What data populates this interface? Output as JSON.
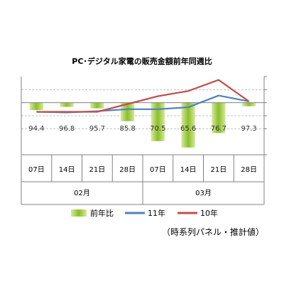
{
  "chart_data": {
    "type": "bar",
    "title": "PC･デジタル家電の販売金額前年同週比",
    "categories": [
      "07日",
      "14日",
      "21日",
      "28日",
      "07日",
      "14日",
      "21日",
      "28日"
    ],
    "month_groups": [
      {
        "label": "02月",
        "from": 0,
        "to": 3
      },
      {
        "label": "03月",
        "from": 4,
        "to": 7
      }
    ],
    "ylim": [
      60,
      120
    ],
    "grid_values": [
      80,
      90,
      100,
      110
    ],
    "reference_value": 100,
    "series": [
      {
        "name": "前年比",
        "kind": "bar",
        "values": [
          94.4,
          96.8,
          95.7,
          85.8,
          70.5,
          65.6,
          76.7,
          97.3
        ],
        "labels": [
          "94.4",
          "96.8",
          "95.7",
          "85.8",
          "70.5",
          "65.6",
          "76.7",
          "97.3"
        ]
      },
      {
        "name": "11年",
        "kind": "line",
        "values": [
          93.0,
          92.5,
          93.5,
          95.0,
          95.0,
          96.5,
          105.5,
          101.0
        ]
      },
      {
        "name": "10年",
        "kind": "line",
        "values": [
          93.0,
          93.0,
          93.0,
          99.0,
          105.0,
          109.0,
          117.5,
          101.0
        ]
      }
    ],
    "legend_position": "bottom",
    "colors": {
      "bar_light": "#d6e99e",
      "bar_dark": "#8cbe2a",
      "line_11": "#4f81bd",
      "line_10": "#c0504d",
      "grid": "#c0c0c0",
      "axis": "#808080"
    },
    "note": "（時系列パネル・推計値）"
  }
}
